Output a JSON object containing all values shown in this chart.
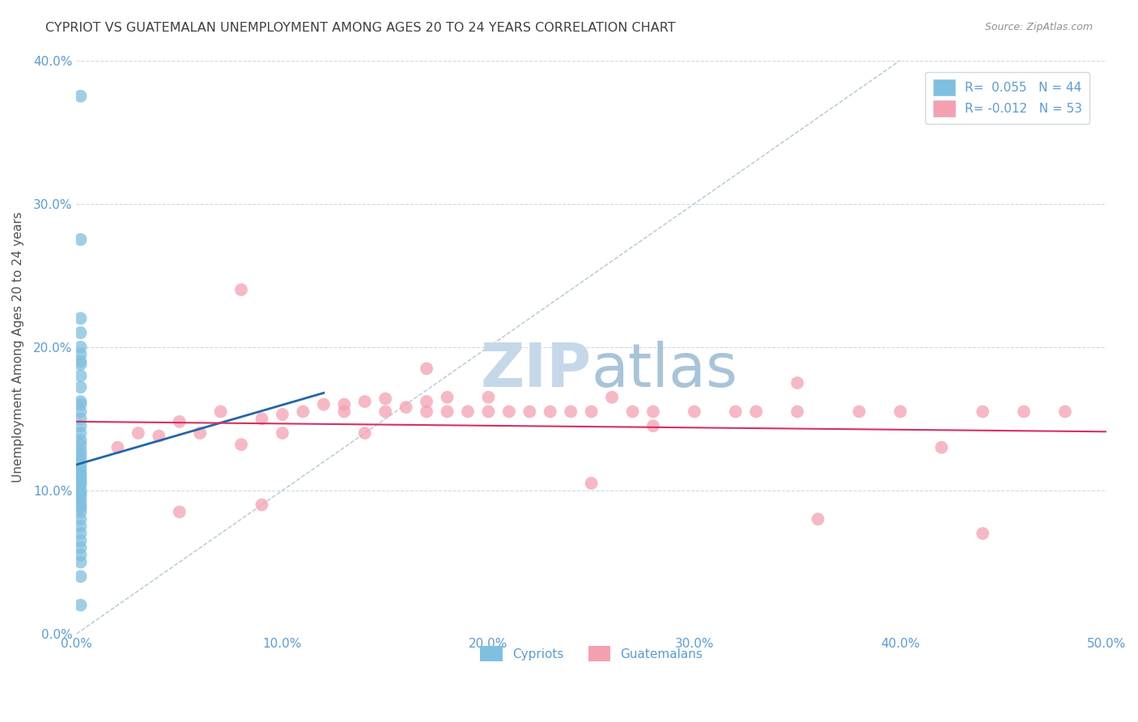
{
  "title": "CYPRIOT VS GUATEMALAN UNEMPLOYMENT AMONG AGES 20 TO 24 YEARS CORRELATION CHART",
  "source": "Source: ZipAtlas.com",
  "ylabel": "Unemployment Among Ages 20 to 24 years",
  "xlim": [
    0.0,
    0.5
  ],
  "ylim": [
    0.0,
    0.4
  ],
  "xticks": [
    0.0,
    0.1,
    0.2,
    0.3,
    0.4,
    0.5
  ],
  "yticks": [
    0.0,
    0.1,
    0.2,
    0.3,
    0.4
  ],
  "legend_R_cypriot": "R=  0.055",
  "legend_N_cypriot": "N = 44",
  "legend_R_guatemalan": "R= -0.012",
  "legend_N_guatemalan": "N = 53",
  "cypriot_color": "#7fbfdf",
  "guatemalan_color": "#f4a0b0",
  "cypriot_line_color": "#2166ac",
  "guatemalan_line_color": "#d63060",
  "ref_line_color": "#a0b8cc",
  "background_color": "#ffffff",
  "cypriot_x": [
    0.002,
    0.002,
    0.002,
    0.002,
    0.002,
    0.002,
    0.002,
    0.002,
    0.002,
    0.002,
    0.002,
    0.002,
    0.002,
    0.002,
    0.002,
    0.002,
    0.002,
    0.002,
    0.002,
    0.002,
    0.002,
    0.002,
    0.002,
    0.002,
    0.002,
    0.002,
    0.002,
    0.002,
    0.002,
    0.002,
    0.002,
    0.002,
    0.002,
    0.002,
    0.002,
    0.002,
    0.002,
    0.002,
    0.002,
    0.002,
    0.002,
    0.002,
    0.002,
    0.002
  ],
  "cypriot_y": [
    0.375,
    0.275,
    0.22,
    0.21,
    0.2,
    0.195,
    0.19,
    0.188,
    0.18,
    0.172,
    0.162,
    0.16,
    0.155,
    0.15,
    0.145,
    0.14,
    0.135,
    0.132,
    0.128,
    0.125,
    0.122,
    0.118,
    0.115,
    0.112,
    0.11,
    0.108,
    0.106,
    0.104,
    0.1,
    0.098,
    0.096,
    0.093,
    0.09,
    0.088,
    0.085,
    0.08,
    0.075,
    0.07,
    0.065,
    0.06,
    0.055,
    0.05,
    0.04,
    0.02
  ],
  "guatemalan_x": [
    0.02,
    0.03,
    0.04,
    0.05,
    0.06,
    0.07,
    0.08,
    0.09,
    0.1,
    0.1,
    0.11,
    0.12,
    0.13,
    0.13,
    0.14,
    0.15,
    0.15,
    0.16,
    0.17,
    0.17,
    0.18,
    0.18,
    0.19,
    0.2,
    0.21,
    0.22,
    0.23,
    0.24,
    0.25,
    0.26,
    0.27,
    0.28,
    0.3,
    0.32,
    0.33,
    0.35,
    0.38,
    0.4,
    0.42,
    0.44,
    0.46,
    0.48,
    0.05,
    0.09,
    0.17,
    0.25,
    0.35,
    0.08,
    0.14,
    0.2,
    0.28,
    0.36,
    0.44
  ],
  "guatemalan_y": [
    0.13,
    0.14,
    0.138,
    0.148,
    0.14,
    0.155,
    0.132,
    0.15,
    0.153,
    0.14,
    0.155,
    0.16,
    0.16,
    0.155,
    0.162,
    0.155,
    0.164,
    0.158,
    0.155,
    0.162,
    0.165,
    0.155,
    0.155,
    0.165,
    0.155,
    0.155,
    0.155,
    0.155,
    0.155,
    0.165,
    0.155,
    0.155,
    0.155,
    0.155,
    0.155,
    0.155,
    0.155,
    0.155,
    0.13,
    0.155,
    0.155,
    0.155,
    0.085,
    0.09,
    0.185,
    0.105,
    0.175,
    0.24,
    0.14,
    0.155,
    0.145,
    0.08,
    0.07
  ]
}
